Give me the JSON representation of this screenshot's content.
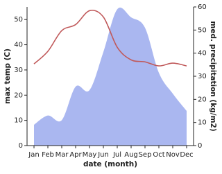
{
  "chart_data": {
    "type": "line-area",
    "xlabel": "date (month)",
    "ylabel": "max temp (C)",
    "y2label": "med. precipitation (kg/m2)",
    "categories": [
      "Jan",
      "Feb",
      "Mar",
      "Apr",
      "May",
      "Jun",
      "Jul",
      "Aug",
      "Sep",
      "Oct",
      "Nov",
      "Dec"
    ],
    "series": [
      {
        "name": "max temp",
        "color": "#c0595a",
        "values": [
          32.4,
          37.4,
          45.6,
          48,
          53.5,
          51,
          39,
          34,
          33.2,
          31.6,
          32.7,
          31.6
        ]
      },
      {
        "name": "med. precipitation",
        "color": "#aab7f0",
        "axis": "y2",
        "values": [
          9,
          13,
          11,
          25.5,
          24,
          40.5,
          59,
          55.5,
          51,
          31.5,
          22.5,
          15
        ]
      }
    ],
    "ylim": [
      0,
      55
    ],
    "yticks": [
      0,
      10,
      20,
      30,
      40,
      50
    ],
    "y2lim": [
      0,
      60
    ],
    "y2ticks": [
      0,
      10,
      20,
      30,
      40,
      50,
      60
    ]
  }
}
